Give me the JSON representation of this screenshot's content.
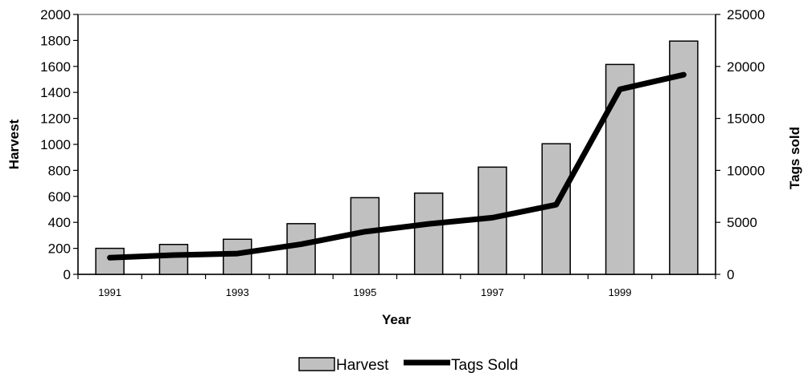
{
  "chart_data": {
    "type": "bar",
    "x": [
      1991,
      1992,
      1993,
      1994,
      1995,
      1996,
      1997,
      1998,
      1999,
      2000
    ],
    "x_tick_labels": [
      "1991",
      "1993",
      "1995",
      "1997",
      "1999"
    ],
    "xlabel": "Year",
    "ylabel": "Harvest",
    "y2label": "Tags sold",
    "ylim": [
      0,
      2000
    ],
    "y2lim": [
      0,
      25000
    ],
    "y_ticks": [
      0,
      200,
      400,
      600,
      800,
      1000,
      1200,
      1400,
      1600,
      1800,
      2000
    ],
    "y2_ticks": [
      0,
      5000,
      10000,
      15000,
      20000,
      25000
    ],
    "series": [
      {
        "name": "Harvest",
        "type": "bar",
        "axis": "left",
        "color": "#c0c0c0",
        "values": [
          200,
          230,
          270,
          390,
          590,
          625,
          825,
          1005,
          1615,
          1795
        ]
      },
      {
        "name": "Tags Sold",
        "type": "line",
        "axis": "right",
        "color": "#000000",
        "values": [
          1600,
          1850,
          2000,
          2900,
          4100,
          4850,
          5450,
          6700,
          17800,
          19200
        ]
      }
    ],
    "legend": {
      "position": "bottom",
      "entries": [
        "Harvest",
        "Tags Sold"
      ]
    },
    "grid": false
  }
}
